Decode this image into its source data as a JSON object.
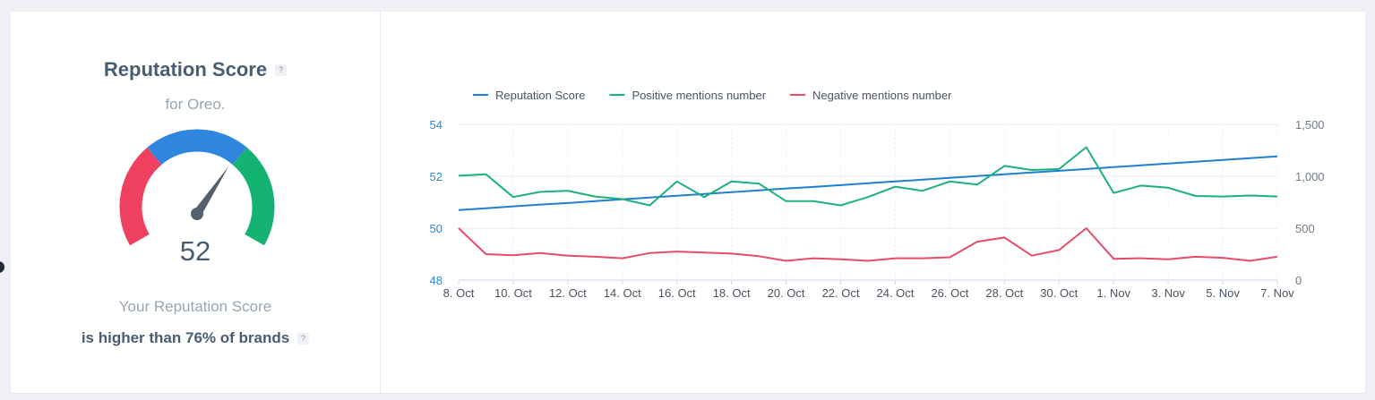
{
  "summary": {
    "title": "Reputation Score",
    "subtitle": "for Oreo.",
    "score": "52",
    "score_value": 52,
    "your_score_label": "Your Reputation Score",
    "comparison_text": "is higher than 76% of brands",
    "help_glyph": "?",
    "gauge_colors": [
      "#f0405f",
      "#2e86de",
      "#15b371"
    ],
    "needle_color": "#55606e"
  },
  "chart_data": {
    "type": "line",
    "x_tick_labels": [
      "8. Oct",
      "10. Oct",
      "12. Oct",
      "14. Oct",
      "16. Oct",
      "18. Oct",
      "20. Oct",
      "22. Oct",
      "24. Oct",
      "26. Oct",
      "28. Oct",
      "30. Oct",
      "1. Nov",
      "3. Nov",
      "5. Nov",
      "7. Nov"
    ],
    "x": [
      "8. Oct",
      "9. Oct",
      "10. Oct",
      "11. Oct",
      "12. Oct",
      "13. Oct",
      "14. Oct",
      "15. Oct",
      "16. Oct",
      "17. Oct",
      "18. Oct",
      "19. Oct",
      "20. Oct",
      "21. Oct",
      "22. Oct",
      "23. Oct",
      "24. Oct",
      "25. Oct",
      "26. Oct",
      "27. Oct",
      "28. Oct",
      "29. Oct",
      "30. Oct",
      "31. Oct",
      "1. Nov",
      "2. Nov",
      "3. Nov",
      "4. Nov",
      "5. Nov",
      "6. Nov",
      "7. Nov"
    ],
    "y_left": {
      "ticks": [
        "48",
        "50",
        "52",
        "54"
      ],
      "range": [
        48,
        54
      ]
    },
    "y_right": {
      "ticks": [
        "0",
        "500",
        "1,000",
        "1,500"
      ],
      "range": [
        0,
        1500
      ]
    },
    "legend_position": "top-left",
    "series": [
      {
        "name": "Reputation Score",
        "axis": "left",
        "color": "#1f7fd0",
        "values": [
          50.7,
          50.77,
          50.84,
          50.91,
          50.97,
          51.04,
          51.11,
          51.18,
          51.25,
          51.32,
          51.39,
          51.46,
          51.53,
          51.59,
          51.66,
          51.73,
          51.8,
          51.87,
          51.94,
          52.01,
          52.08,
          52.15,
          52.21,
          52.28,
          52.35,
          52.42,
          52.49,
          52.56,
          52.63,
          52.7,
          52.77
        ]
      },
      {
        "name": "Positive mentions number",
        "axis": "right",
        "color": "#1eb27a",
        "values": [
          1005,
          1020,
          800,
          850,
          860,
          805,
          780,
          720,
          950,
          800,
          950,
          930,
          760,
          760,
          720,
          800,
          900,
          860,
          950,
          920,
          1100,
          1060,
          1070,
          1280,
          840,
          910,
          890,
          810,
          805,
          815,
          805
        ]
      },
      {
        "name": "Negative mentions number",
        "axis": "right",
        "color": "#e84a68",
        "values": [
          500,
          250,
          240,
          260,
          235,
          225,
          210,
          260,
          275,
          265,
          255,
          230,
          185,
          210,
          200,
          185,
          210,
          210,
          220,
          370,
          410,
          235,
          290,
          500,
          205,
          210,
          200,
          225,
          215,
          185,
          225
        ]
      }
    ]
  }
}
